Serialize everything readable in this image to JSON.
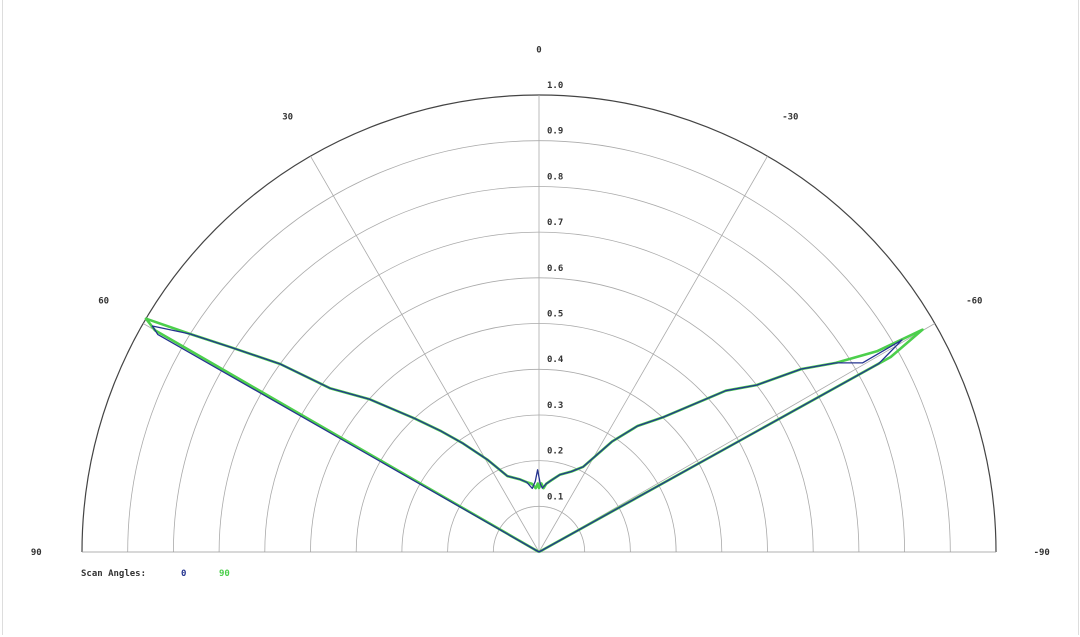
{
  "chart_data": {
    "type": "polar-line",
    "angle_range": [
      -90,
      90
    ],
    "radial_range": [
      0,
      1.0
    ],
    "grid": true,
    "angle_ticks": [
      "0",
      "30",
      "-30",
      "60",
      "-60",
      "90",
      "-90"
    ],
    "angle_tick_values": [
      0,
      30,
      -30,
      60,
      -60,
      90,
      -90
    ],
    "radial_ticks": [
      "0.1",
      "0.2",
      "0.3",
      "0.4",
      "0.5",
      "0.6",
      "0.7",
      "0.8",
      "0.9",
      "1.0"
    ],
    "radial_tick_values": [
      0.1,
      0.2,
      0.3,
      0.4,
      0.5,
      0.6,
      0.7,
      0.8,
      0.9,
      1.0
    ],
    "legend": {
      "title": "Scan Angles:",
      "placement": "bottom-left"
    },
    "series": [
      {
        "name": "90",
        "color": "#4ccf4c",
        "points": [
          [
            61.5,
            0
          ],
          [
            60,
            0.97
          ],
          [
            59.3,
            1.0
          ],
          [
            58,
            0.9
          ],
          [
            56.4,
            0.81
          ],
          [
            54,
            0.7
          ],
          [
            51.9,
            0.58
          ],
          [
            48,
            0.5
          ],
          [
            43,
            0.4
          ],
          [
            39,
            0.34
          ],
          [
            35,
            0.29
          ],
          [
            29,
            0.23
          ],
          [
            22.6,
            0.18
          ],
          [
            15,
            0.165
          ],
          [
            10,
            0.155
          ],
          [
            6,
            0.15
          ],
          [
            3,
            0.14
          ],
          [
            1,
            0.15
          ],
          [
            0,
            0.14
          ],
          [
            -2,
            0.15
          ],
          [
            -4,
            0.14
          ],
          [
            -6,
            0.15
          ],
          [
            -10,
            0.16
          ],
          [
            -15,
            0.175
          ],
          [
            -22,
            0.19
          ],
          [
            -27.4,
            0.21
          ],
          [
            -33.5,
            0.29
          ],
          [
            -38,
            0.35
          ],
          [
            -42.6,
            0.4
          ],
          [
            -49.2,
            0.54
          ],
          [
            -52.5,
            0.6
          ],
          [
            -55.1,
            0.7
          ],
          [
            -57.5,
            0.77
          ],
          [
            -59.3,
            0.86
          ],
          [
            -59.9,
            0.97
          ],
          [
            -61,
            0.88
          ],
          [
            -61.5,
            0
          ]
        ]
      },
      {
        "name": "0",
        "color": "#24338f",
        "points": [
          [
            61.5,
            0
          ],
          [
            60.3,
            0.96
          ],
          [
            59.7,
            0.98
          ],
          [
            58,
            0.9
          ],
          [
            56.4,
            0.81
          ],
          [
            54,
            0.7
          ],
          [
            51.9,
            0.58
          ],
          [
            48,
            0.5
          ],
          [
            43,
            0.4
          ],
          [
            39,
            0.34
          ],
          [
            35,
            0.29
          ],
          [
            29,
            0.23
          ],
          [
            22.6,
            0.18
          ],
          [
            15,
            0.165
          ],
          [
            10,
            0.155
          ],
          [
            6,
            0.14
          ],
          [
            3,
            0.155
          ],
          [
            1,
            0.18
          ],
          [
            -1,
            0.15
          ],
          [
            -3,
            0.14
          ],
          [
            -6,
            0.15
          ],
          [
            -10,
            0.16
          ],
          [
            -15,
            0.175
          ],
          [
            -22,
            0.19
          ],
          [
            -27.4,
            0.21
          ],
          [
            -33.5,
            0.29
          ],
          [
            -38,
            0.35
          ],
          [
            -42.6,
            0.4
          ],
          [
            -49.2,
            0.54
          ],
          [
            -52.5,
            0.6
          ],
          [
            -55.1,
            0.7
          ],
          [
            -57.5,
            0.77
          ],
          [
            -59.7,
            0.82
          ],
          [
            -59.7,
            0.92
          ],
          [
            -61,
            0.85
          ],
          [
            -61.5,
            0
          ]
        ]
      }
    ]
  }
}
